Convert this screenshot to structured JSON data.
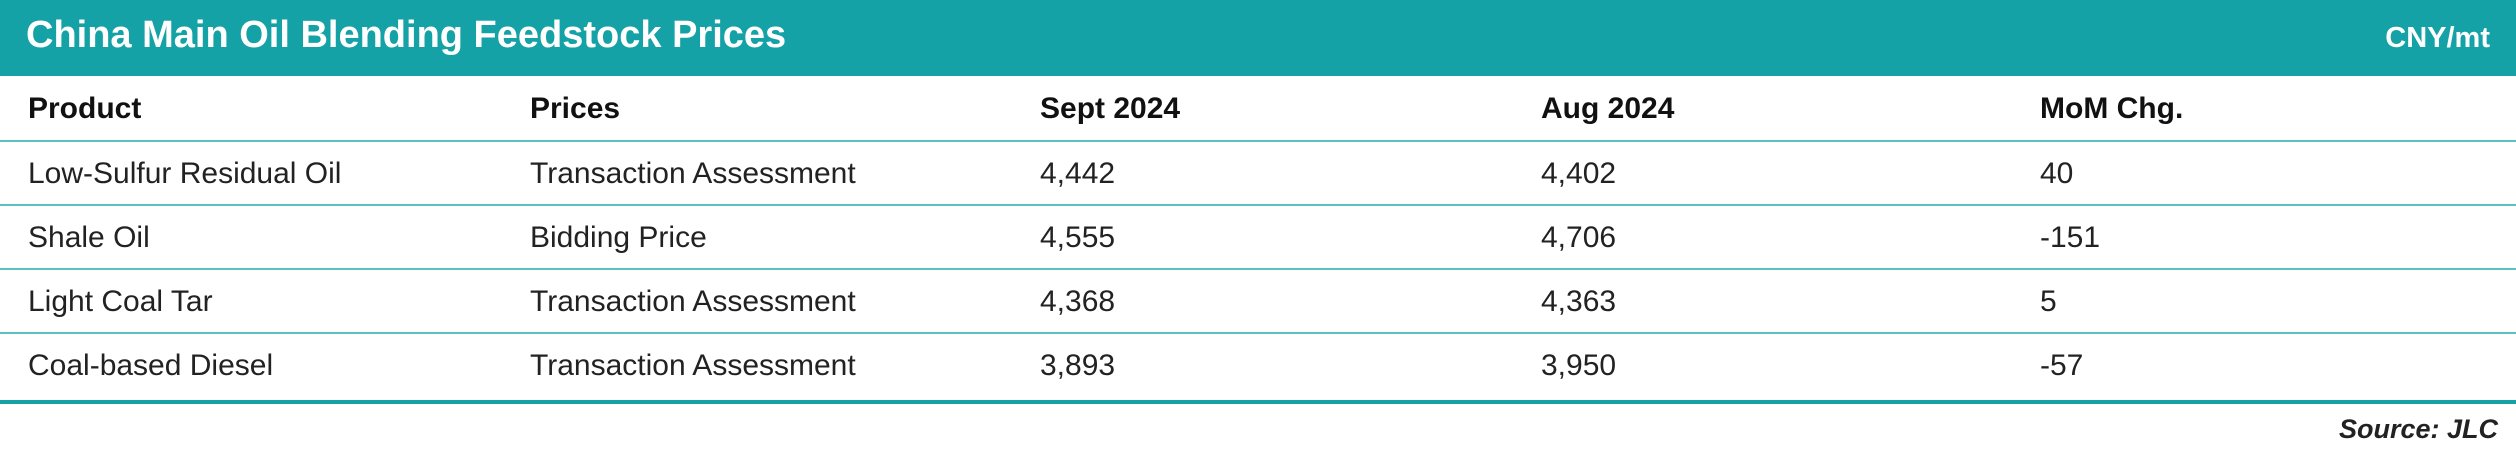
{
  "header": {
    "title": "China Main Oil Blending Feedstock Prices",
    "unit": "CNY/mt"
  },
  "table": {
    "columns": [
      "Product",
      "Prices",
      "Sept 2024",
      "Aug 2024",
      "MoM Chg."
    ],
    "rows": [
      [
        "Low-Sulfur Residual Oil",
        "Transaction Assessment",
        "4,442",
        "4,402",
        "40"
      ],
      [
        "Shale Oil",
        "Bidding Price",
        "4,555",
        "4,706",
        "-151"
      ],
      [
        "Light Coal Tar",
        "Transaction Assessment",
        "4,368",
        "4,363",
        "5"
      ],
      [
        "Coal-based Diesel",
        "Transaction Assessment",
        "3,893",
        "3,950",
        "-57"
      ]
    ]
  },
  "footer": {
    "source": "Source: JLC"
  }
}
